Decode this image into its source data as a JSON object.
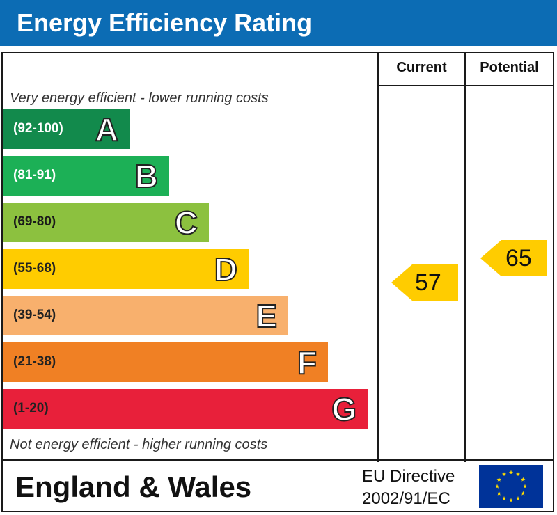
{
  "title": "Energy Efficiency Rating",
  "columns": {
    "current": "Current",
    "potential": "Potential"
  },
  "notes": {
    "top": "Very energy efficient - lower running costs",
    "bottom": "Not energy efficient - higher running costs"
  },
  "chart_data": {
    "type": "bar",
    "title": "Energy Efficiency Rating",
    "bands": [
      {
        "letter": "A",
        "range": "(92-100)",
        "color": "#128a4c"
      },
      {
        "letter": "B",
        "range": "(81-91)",
        "color": "#1cb056"
      },
      {
        "letter": "C",
        "range": "(69-80)",
        "color": "#8cc13f"
      },
      {
        "letter": "D",
        "range": "(55-68)",
        "color": "#ffcc00"
      },
      {
        "letter": "E",
        "range": "(39-54)",
        "color": "#f8b06d"
      },
      {
        "letter": "F",
        "range": "(21-38)",
        "color": "#f08024"
      },
      {
        "letter": "G",
        "range": "(1-20)",
        "color": "#e8203a"
      }
    ],
    "current": 57,
    "potential": 65,
    "marker_color": "#ffcc00"
  },
  "footer": {
    "region": "England & Wales",
    "directive_line1": "EU Directive",
    "directive_line2": "2002/91/EC",
    "flag_color": "#003399",
    "star_color": "#ffdd00"
  }
}
